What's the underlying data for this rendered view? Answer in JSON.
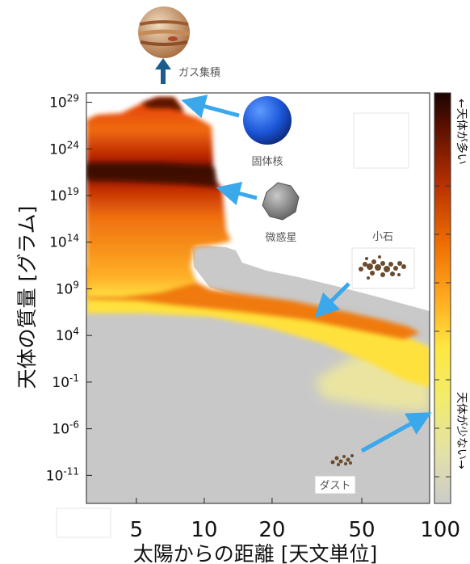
{
  "chart_data": {
    "type": "heatmap",
    "xlabel": "太陽からの距離 [天文単位]",
    "ylabel": "天体の質量 [グラム]",
    "x_scale": "log",
    "x_ticks": [
      5,
      10,
      20,
      50,
      100
    ],
    "x_tick_labels": [
      "5",
      "10",
      "20",
      "50",
      "100"
    ],
    "xlim": [
      3,
      100
    ],
    "y_scale": "log",
    "y_ticks": [
      1e+29,
      1e+24,
      1e+19,
      100000000000000.0,
      1000000000.0,
      10000.0,
      0.1,
      1e-06,
      1e-11
    ],
    "y_tick_bases": [
      "10",
      "10",
      "10",
      "10",
      "10",
      "10",
      "10",
      "10",
      "10"
    ],
    "y_tick_exps": [
      "29",
      "24",
      "19",
      "14",
      "9",
      "4",
      "-1",
      "-6",
      "-11"
    ],
    "ylim": [
      1e-14,
      1e+30
    ],
    "colorbar": {
      "top_label": "←天体が多い",
      "bottom_label": "天体が少ない→",
      "colors": [
        "#1a0500",
        "#5a0f00",
        "#b53000",
        "#ee6a00",
        "#ffaa20",
        "#ffe640",
        "#f2ec6a",
        "#e3e1a8",
        "#cbcbcb"
      ]
    },
    "regions": [
      {
        "kind": "solid-core-growth",
        "x_max": 11,
        "y_max": 1e+29,
        "color": "#d92c00"
      },
      {
        "kind": "planetesimal-band",
        "y_center": 1e+19,
        "color": "#3a0a00"
      },
      {
        "kind": "pebble-ridge",
        "from": [
          6,
          1000000.0
        ],
        "to": [
          100,
          0.1
        ],
        "color": "#ffe13c"
      },
      {
        "kind": "dust-floor",
        "color": "#c8c8c8"
      }
    ],
    "annotations": [
      {
        "label": "ガス集積",
        "target": [
          6,
          1e+30
        ]
      },
      {
        "label": "固体核",
        "target": [
          7,
          1e+29
        ]
      },
      {
        "label": "微惑星",
        "target": [
          8,
          1e+19
        ]
      },
      {
        "label": "小石",
        "target": [
          30,
          10000000.0
        ]
      },
      {
        "label": "ダスト",
        "target": [
          100,
          1e-06
        ]
      }
    ]
  }
}
